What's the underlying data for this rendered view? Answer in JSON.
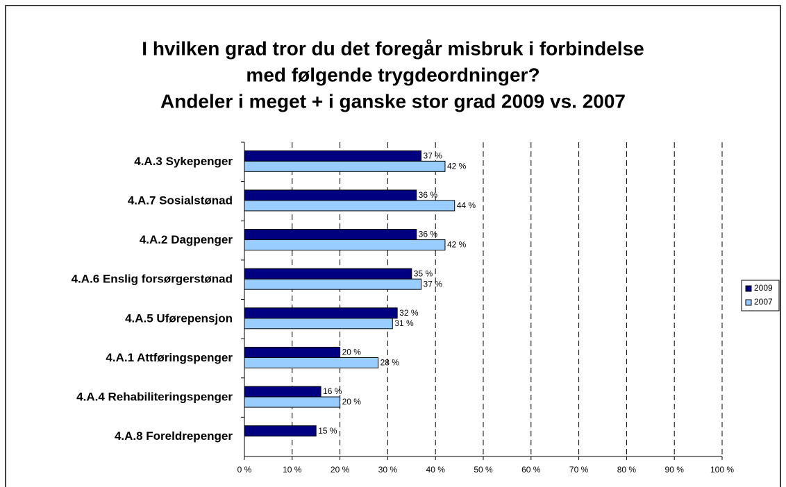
{
  "chart_data": {
    "type": "bar",
    "orientation": "horizontal",
    "title": [
      "I hvilken grad tror du det foregår misbruk i forbindelse",
      "med følgende trygdeordninger?",
      "Andeler i meget + i ganske stor grad 2009 vs. 2007"
    ],
    "categories": [
      "4.A.3 Sykepenger",
      "4.A.7 Sosialstønad",
      "4.A.2 Dagpenger",
      "4.A.6 Enslig forsørgerstønad",
      "4.A.5 Uførepensjon",
      "4.A.1 Attføringspenger",
      "4.A.4 Rehabiliteringspenger",
      "4.A.8 Foreldrepenger"
    ],
    "series": [
      {
        "name": "2009",
        "color": "#000080",
        "values": [
          37,
          36,
          36,
          35,
          32,
          20,
          16,
          15
        ],
        "value_labels": [
          "37 %",
          "36 %",
          "36 %",
          "35 %",
          "32 %",
          "20 %",
          "16 %",
          "15 %"
        ]
      },
      {
        "name": "2007",
        "color": "#99ccff",
        "values": [
          42,
          44,
          42,
          37,
          31,
          28,
          20,
          null
        ],
        "value_labels": [
          "42 %",
          "44 %",
          "42 %",
          "37 %",
          "31 %",
          "28 %",
          "20 %",
          null
        ]
      }
    ],
    "xlim": [
      0,
      100
    ],
    "xticks": [
      {
        "value": 0,
        "label": "0 %"
      },
      {
        "value": 10,
        "label": "10 %"
      },
      {
        "value": 20,
        "label": "20 %"
      },
      {
        "value": 30,
        "label": "30 %"
      },
      {
        "value": 40,
        "label": "40 %"
      },
      {
        "value": 50,
        "label": "50 %"
      },
      {
        "value": 60,
        "label": "60 %"
      },
      {
        "value": 70,
        "label": "70 %"
      },
      {
        "value": 80,
        "label": "80 %"
      },
      {
        "value": 90,
        "label": "90 %"
      },
      {
        "value": 100,
        "label": "100 %"
      }
    ],
    "grid": true,
    "legend": "right"
  }
}
